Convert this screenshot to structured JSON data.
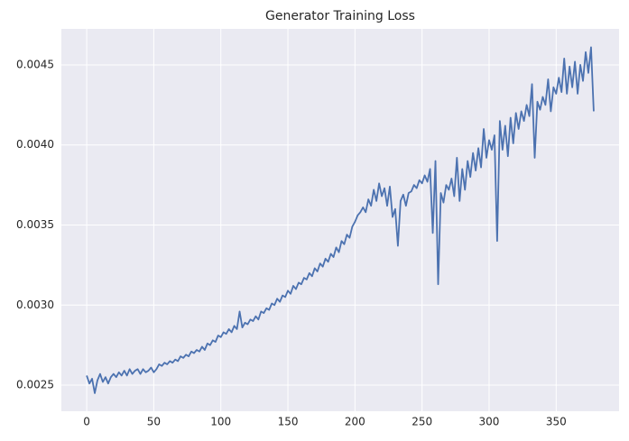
{
  "chart_data": {
    "type": "line",
    "title": "Generator Training Loss",
    "x": [
      0,
      2,
      4,
      6,
      8,
      10,
      12,
      14,
      16,
      18,
      20,
      22,
      24,
      26,
      28,
      30,
      32,
      34,
      36,
      38,
      40,
      42,
      44,
      46,
      48,
      50,
      52,
      54,
      56,
      58,
      60,
      62,
      64,
      66,
      68,
      70,
      72,
      74,
      76,
      78,
      80,
      82,
      84,
      86,
      88,
      90,
      92,
      94,
      96,
      98,
      100,
      102,
      104,
      106,
      108,
      110,
      112,
      114,
      116,
      118,
      120,
      122,
      124,
      126,
      128,
      130,
      132,
      134,
      136,
      138,
      140,
      142,
      144,
      146,
      148,
      150,
      152,
      154,
      156,
      158,
      160,
      162,
      164,
      166,
      168,
      170,
      172,
      174,
      176,
      178,
      180,
      182,
      184,
      186,
      188,
      190,
      192,
      194,
      196,
      198,
      200,
      202,
      204,
      206,
      208,
      210,
      212,
      214,
      216,
      218,
      220,
      222,
      224,
      226,
      228,
      230,
      232,
      234,
      236,
      238,
      240,
      242,
      244,
      246,
      248,
      250,
      252,
      254,
      256,
      258,
      260,
      262,
      264,
      266,
      268,
      270,
      272,
      274,
      276,
      278,
      280,
      282,
      284,
      286,
      288,
      290,
      292,
      294,
      296,
      298,
      300,
      302,
      304,
      306,
      308,
      310,
      312,
      314,
      316,
      318,
      320,
      322,
      324,
      326,
      328,
      330,
      332,
      334,
      336,
      338,
      340,
      342,
      344,
      346,
      348,
      350,
      352,
      354,
      356,
      358,
      360,
      362,
      364,
      366,
      368,
      370,
      372,
      374,
      376,
      378
    ],
    "series": [
      {
        "color": "#4c72b0",
        "values": [
          0.00256,
          0.00251,
          0.00254,
          0.00245,
          0.00253,
          0.00257,
          0.00252,
          0.00255,
          0.00251,
          0.00255,
          0.00257,
          0.00255,
          0.00258,
          0.00256,
          0.00259,
          0.00256,
          0.0026,
          0.00257,
          0.00259,
          0.0026,
          0.00257,
          0.0026,
          0.00258,
          0.00259,
          0.00261,
          0.00258,
          0.0026,
          0.00263,
          0.00262,
          0.00264,
          0.00263,
          0.00265,
          0.00264,
          0.00266,
          0.00265,
          0.00268,
          0.00267,
          0.00269,
          0.00268,
          0.00271,
          0.0027,
          0.00272,
          0.00271,
          0.00274,
          0.00272,
          0.00276,
          0.00275,
          0.00278,
          0.00277,
          0.00281,
          0.0028,
          0.00283,
          0.00282,
          0.00285,
          0.00283,
          0.00287,
          0.00285,
          0.00296,
          0.00286,
          0.00289,
          0.00288,
          0.00291,
          0.0029,
          0.00293,
          0.00291,
          0.00296,
          0.00295,
          0.00298,
          0.00297,
          0.00301,
          0.003,
          0.00304,
          0.00302,
          0.00306,
          0.00305,
          0.00309,
          0.00307,
          0.00312,
          0.0031,
          0.00314,
          0.00313,
          0.00317,
          0.00316,
          0.0032,
          0.00318,
          0.00323,
          0.00321,
          0.00326,
          0.00324,
          0.00329,
          0.00327,
          0.00332,
          0.0033,
          0.00336,
          0.00333,
          0.0034,
          0.00338,
          0.00344,
          0.00342,
          0.00349,
          0.00352,
          0.00356,
          0.00358,
          0.00361,
          0.00358,
          0.00366,
          0.00362,
          0.00372,
          0.00365,
          0.00376,
          0.00368,
          0.00373,
          0.00362,
          0.00374,
          0.00355,
          0.0036,
          0.00337,
          0.00365,
          0.00369,
          0.00362,
          0.0037,
          0.00371,
          0.00375,
          0.00373,
          0.00378,
          0.00376,
          0.00381,
          0.00377,
          0.00385,
          0.00345,
          0.0039,
          0.00313,
          0.0037,
          0.00364,
          0.00375,
          0.00372,
          0.00379,
          0.00368,
          0.00392,
          0.00365,
          0.00385,
          0.00372,
          0.0039,
          0.0038,
          0.00395,
          0.00384,
          0.00398,
          0.00386,
          0.0041,
          0.00392,
          0.00403,
          0.00397,
          0.00406,
          0.0034,
          0.00415,
          0.00397,
          0.00412,
          0.00393,
          0.00417,
          0.00401,
          0.0042,
          0.0041,
          0.00421,
          0.00415,
          0.00425,
          0.00418,
          0.00438,
          0.00392,
          0.00427,
          0.00422,
          0.0043,
          0.00425,
          0.00441,
          0.00421,
          0.00436,
          0.00432,
          0.00442,
          0.00433,
          0.00454,
          0.00432,
          0.00449,
          0.00436,
          0.00452,
          0.00432,
          0.0045,
          0.0044,
          0.00458,
          0.00445,
          0.00461,
          0.00421
        ]
      }
    ],
    "xlim": [
      -18.9,
      396.9
    ],
    "xticks": [
      0,
      50,
      100,
      150,
      200,
      250,
      300,
      350
    ],
    "ylim": [
      0.002337,
      0.004725
    ],
    "yticks": [
      0.0025,
      {
        "value": 0.003,
        "label": "0.0030"
      },
      0.0035,
      {
        "value": 0.004,
        "label": "0.0040"
      },
      0.0045
    ],
    "grid": true
  }
}
